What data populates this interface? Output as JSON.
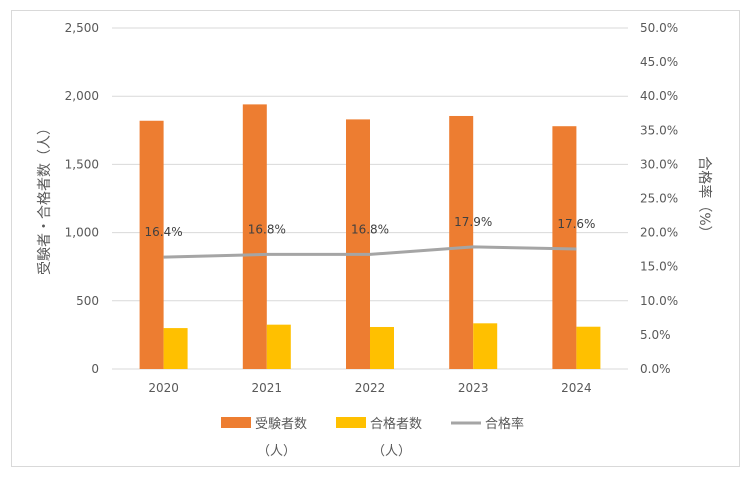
{
  "chart_data": {
    "type": "bar",
    "categories": [
      "2020",
      "2021",
      "2022",
      "2023",
      "2024"
    ],
    "series": [
      {
        "name": "受験者数（人）",
        "kind": "bar",
        "axis": "left",
        "color": "#ED7D31",
        "values": [
          1820,
          1940,
          1830,
          1855,
          1780
        ]
      },
      {
        "name": "合格者数（人）",
        "kind": "bar",
        "axis": "left",
        "color": "#FFC000",
        "values": [
          300,
          325,
          308,
          335,
          310
        ]
      },
      {
        "name": "合格率",
        "kind": "line",
        "axis": "right",
        "color": "#A5A5A5",
        "values": [
          16.4,
          16.8,
          16.8,
          17.9,
          17.6
        ],
        "labels": [
          "16.4%",
          "16.8%",
          "16.8%",
          "17.9%",
          "17.6%"
        ]
      }
    ],
    "ylabel": "受験者・合格者数（人）",
    "y2label": "合格率（%）",
    "ylim": [
      0,
      2500
    ],
    "y2lim": [
      0,
      50
    ],
    "yticks": [
      "0",
      "500",
      "1,000",
      "1,500",
      "2,000",
      "2,500"
    ],
    "y2ticks": [
      "0.0%",
      "5.0%",
      "10.0%",
      "15.0%",
      "20.0%",
      "25.0%",
      "30.0%",
      "35.0%",
      "40.0%",
      "45.0%",
      "50.0%"
    ],
    "grid": true,
    "legend_position": "bottom",
    "legend": [
      {
        "label_line1": "受験者数",
        "label_line2": "（人）"
      },
      {
        "label_line1": "合格者数",
        "label_line2": "（人）"
      },
      {
        "label_line1": "合格率",
        "label_line2": ""
      }
    ]
  }
}
